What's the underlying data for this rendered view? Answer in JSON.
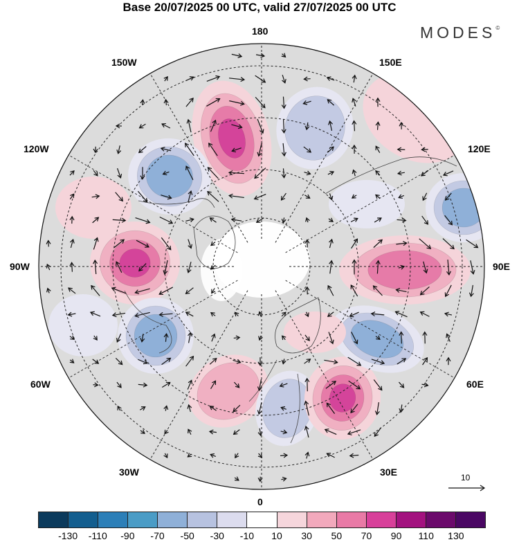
{
  "title": "Base 20/07/2025 00 UTC, valid 27/07/2025 00 UTC",
  "logo": {
    "text": "MODES",
    "mark": "©"
  },
  "longitude_labels": {
    "top": "180",
    "bottom": "0",
    "left": "90W",
    "right": "90E",
    "w150": "150W",
    "e150": "150E",
    "w120": "120W",
    "e120": "120E",
    "w60": "60W",
    "e60": "60E",
    "w30": "30W",
    "e30": "30E"
  },
  "reference_vector": {
    "value": "10"
  },
  "colorbar": {
    "ticks": [
      "-130",
      "-110",
      "-90",
      "-70",
      "-50",
      "-30",
      "-10",
      "10",
      "30",
      "50",
      "70",
      "90",
      "110",
      "130"
    ],
    "colors": [
      "#0b3a5c",
      "#135e8f",
      "#2c7fb8",
      "#4a9cc6",
      "#8fb0d8",
      "#b7c2e0",
      "#dcdcee",
      "#ffffff",
      "#f6d6dc",
      "#f2a9bc",
      "#e97aa6",
      "#d8409a",
      "#a3127f",
      "#6b0a6b",
      "#4a0763"
    ]
  },
  "colors": {
    "land": "#dcdcdc",
    "neg1": "#e6e6f2",
    "neg2": "#c3cae3",
    "neg3": "#8fb0d8",
    "neg4": "#4a9cc6",
    "pos1": "#f5d4da",
    "pos2": "#f0b0c2",
    "pos3": "#e67ba8",
    "pos4": "#d4449a"
  }
}
